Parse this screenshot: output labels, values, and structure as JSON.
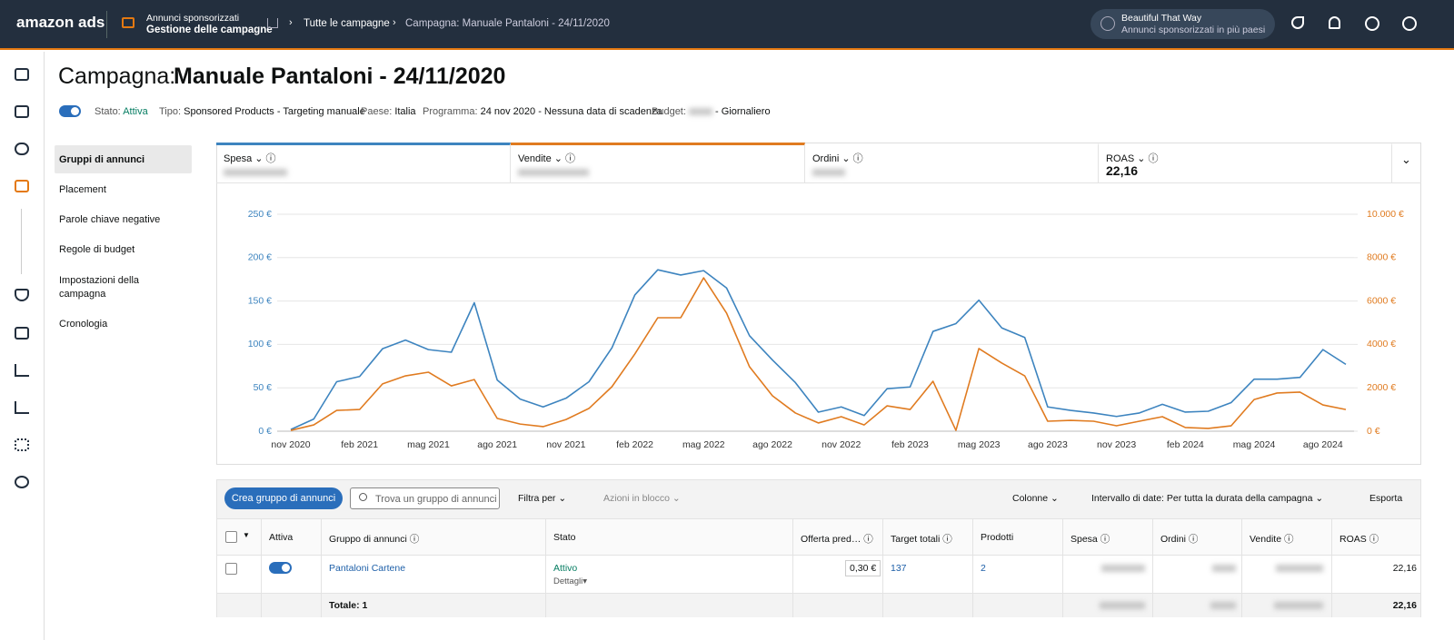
{
  "header": {
    "brand": "amazon ads",
    "section": "Annunci sponsorizzati",
    "section_sub": "Gestione delle campagne",
    "breadcrumbs": [
      "Tutte le campagne",
      "Campagna: Manuale Pantaloni - 24/11/2020"
    ],
    "account": "Beautiful That Way",
    "account_sub": "Annunci sponsorizzati in più paesi"
  },
  "page_title": {
    "label": "Campagna:",
    "name": "Manuale Pantaloni - 24/11/2020"
  },
  "info": [
    {
      "label": "Stato:",
      "value": "Attiva"
    },
    {
      "label": "Tipo:",
      "value": "Sponsored Products - Targeting manuale"
    },
    {
      "label": "Paese:",
      "value": "Italia"
    },
    {
      "label": "Programma:",
      "value": "24 nov 2020 - Nessuna data di scadenza"
    },
    {
      "label": "Budget:",
      "value": "- Giornaliero"
    }
  ],
  "subnav": [
    "Gruppi di annunci",
    "Placement",
    "Parole chiave negative",
    "Regole di budget",
    "Impostazioni della campagna",
    "Cronologia"
  ],
  "metrics": [
    {
      "label": "Ordini"
    },
    {
      "label": "ROAS",
      "value": "22,16"
    }
  ],
  "chart_data": {
    "type": "line",
    "categories": [
      "nov 2020",
      null,
      null,
      "feb 2021",
      null,
      null,
      "mag 2021",
      null,
      null,
      "ago 2021",
      null,
      null,
      "nov 2021",
      null,
      null,
      "feb 2022",
      null,
      null,
      "mag 2022",
      null,
      null,
      "ago 2022",
      null,
      null,
      "nov 2022",
      null,
      null,
      "feb 2023",
      null,
      null,
      "mag 2023",
      null,
      null,
      "ago 2023",
      null,
      null,
      "nov 2023",
      null,
      null,
      "feb 2024",
      null,
      null,
      "mag 2024",
      null,
      null,
      "ago 2024",
      null
    ],
    "series": [
      {
        "name": "Spesa",
        "color": "#3d84bf",
        "values": [
          2,
          14,
          57,
          63,
          95,
          105,
          94,
          91,
          148,
          59,
          37,
          28,
          38,
          57,
          96,
          157,
          186,
          180,
          185,
          165,
          110,
          82,
          56,
          22,
          28,
          18,
          49,
          51,
          115,
          124,
          151,
          119,
          108,
          28,
          24,
          21,
          17,
          21,
          31,
          22,
          23,
          33,
          60,
          60,
          62,
          94,
          77
        ]
      },
      {
        "name": "Vendite",
        "color": "#e07b20",
        "axis": "y2",
        "values": [
          40,
          290,
          960,
          1000,
          2180,
          2550,
          2720,
          2090,
          2380,
          590,
          330,
          210,
          540,
          1050,
          2050,
          3560,
          5230,
          5230,
          7070,
          5440,
          2970,
          1630,
          840,
          380,
          670,
          290,
          1170,
          1000,
          2300,
          40,
          3810,
          3140,
          2550,
          460,
          500,
          460,
          250,
          460,
          670,
          170,
          130,
          250,
          1460,
          1760,
          1800,
          1210,
          1000
        ]
      }
    ],
    "ylim": [
      0,
      250
    ],
    "yticks": [
      {
        "value": 0,
        "label": "0 €"
      },
      {
        "value": 50,
        "label": "50 €"
      },
      {
        "value": 100,
        "label": "100 €"
      },
      {
        "value": 150,
        "label": "150 €"
      },
      {
        "value": 200,
        "label": "200 €"
      },
      {
        "value": 250,
        "label": "250 €"
      }
    ],
    "y2lim": [
      0,
      10000
    ],
    "y2ticks": [
      {
        "value": 0,
        "label": "0 €"
      },
      {
        "value": 2000,
        "label": "2000 €"
      },
      {
        "value": 4000,
        "label": "4000 €"
      },
      {
        "value": 6000,
        "label": "6000 €"
      },
      {
        "value": 8000,
        "label": "8000 €"
      },
      {
        "value": 10000,
        "label": "10.000 €"
      }
    ],
    "grid": true
  },
  "toolbar": {
    "create": "Crea gruppo di annunci",
    "search": "Trova un gruppo di annunci",
    "filter": "Filtra per",
    "bulk": "Azioni in blocco",
    "columns": "Colonne",
    "date_range": "Intervallo di date: Per tutta la durata della campagna",
    "export": "Esporta"
  },
  "table": {
    "columns": [
      "Attiva",
      "Gruppo di annunci",
      "Stato",
      "Offerta pred…",
      "Target totali",
      "Prodotti",
      "Spesa",
      "Ordini",
      "Vendite",
      "ROAS"
    ],
    "rows": [
      {
        "name": "Pantaloni Cartene",
        "status": "Attivo",
        "details": "Dettagli",
        "bid": "0,30 €",
        "targets": "137",
        "products": "2",
        "roas": "22,16"
      }
    ],
    "totals": {
      "label": "Totale: 1",
      "roas": "22,16"
    }
  }
}
